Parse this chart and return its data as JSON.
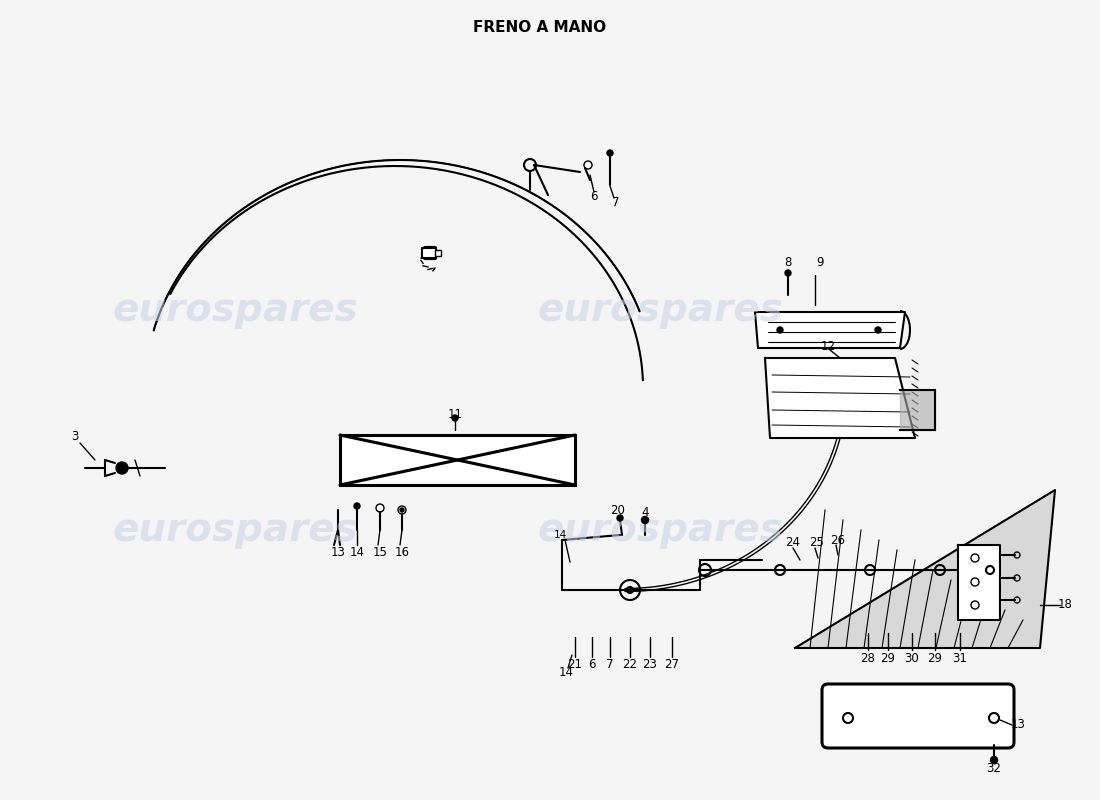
{
  "title": "FRENO A MANO",
  "title_fontsize": 11,
  "title_fontweight": "bold",
  "background_color": "#f5f5f5",
  "watermark_text": "eurospares",
  "watermark_color": "#c8d4e8",
  "fig_width": 11.0,
  "fig_height": 8.0,
  "dpi": 100,
  "lw_main": 1.5,
  "lw_thin": 1.0,
  "lw_thick": 2.2,
  "label_fontsize": 8.5
}
